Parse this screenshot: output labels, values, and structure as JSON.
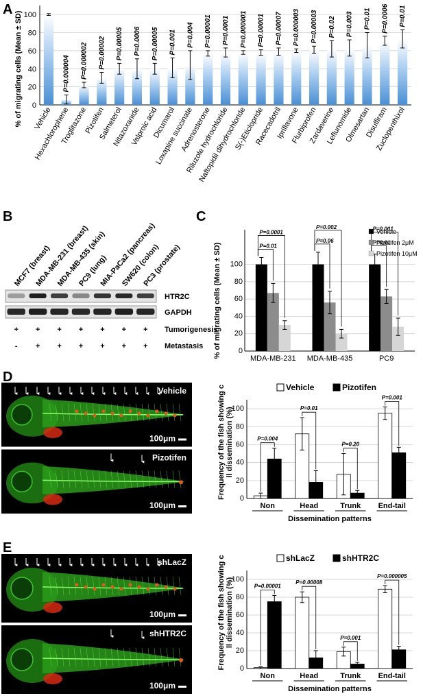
{
  "panels": {
    "A": "A",
    "B": "B",
    "C": "C",
    "D": "D",
    "E": "E"
  },
  "chart_data": [
    {
      "id": "A",
      "type": "bar",
      "ylabel": "% of migrating cells (Mean ± SD)",
      "ylim": [
        0,
        110
      ],
      "yticks": [
        0,
        20,
        40,
        60,
        80,
        100
      ],
      "grid": true,
      "categories": [
        "Vehicle",
        "Hexachlorophene",
        "Troglitazone",
        "Pizotifen",
        "Salmeterol",
        "Nitazoxanide",
        "Valproic acid",
        "Dicumarol",
        "Loxapine succinate",
        "Adrenosterone",
        "Riluzole hydrochloride",
        "Naftopidil dihydrochloride",
        "S(-)Eticlopride",
        "Racecadotril",
        "Ipriflavone",
        "Flurbiprofen",
        "Zardaverine",
        "Leflunomide",
        "Olmesartan",
        "Disulfiram",
        "Zuclopenthixol"
      ],
      "values": [
        100,
        6,
        22,
        30,
        40,
        40,
        40,
        41,
        44,
        57,
        58,
        58,
        58,
        59,
        60,
        61,
        62,
        63,
        66,
        71,
        73
      ],
      "errors": [
        1,
        5,
        3,
        6,
        6,
        11,
        6,
        11,
        16,
        3,
        5,
        2,
        3,
        4,
        2,
        4,
        9,
        9,
        14,
        5,
        10
      ],
      "pvalues": [
        "",
        "P=0.000004",
        "P=0.000002",
        "P=0.00002",
        "P=0.00005",
        "P=0.0006",
        "P=0.00005",
        "P=0.001",
        "P=0.004",
        "P=0.00001",
        "P=0.0001",
        "P=0.000001",
        "P=0.00001",
        "P=0.00007",
        "P=0.000003",
        "P=0.00003",
        "P=0.02",
        "P=0.003",
        "P=0.01",
        "P=0.0006",
        "P=0.01"
      ]
    },
    {
      "id": "C",
      "type": "bar",
      "ylabel": "% of migrating cells (Mean ± SD)",
      "ylim": [
        0,
        140
      ],
      "yticks": [
        0,
        20,
        40,
        60,
        80,
        100
      ],
      "grid": true,
      "legend_position": "top-right",
      "categories": [
        "MDA-MB-231",
        "MDA-MB-435",
        "PC9"
      ],
      "series": [
        {
          "name": "Vehicle",
          "color": "#000000",
          "values": [
            100,
            100,
            100
          ],
          "errors": [
            8,
            14,
            12
          ]
        },
        {
          "name": "Pizotifen  2μM",
          "color": "#8c8c8c",
          "values": [
            67,
            56,
            63
          ],
          "errors": [
            11,
            13,
            8
          ]
        },
        {
          "name": "Pizotifen 10μM",
          "color": "#d6d6d6",
          "values": [
            30,
            20,
            28
          ],
          "errors": [
            5,
            5,
            10
          ]
        }
      ],
      "comparisons": [
        {
          "group": 0,
          "to": 1,
          "label": "P=0.01"
        },
        {
          "group": 0,
          "to": 2,
          "label": "P=0.0001"
        },
        {
          "group": 1,
          "to": 1,
          "label": "P=0.06"
        },
        {
          "group": 1,
          "to": 2,
          "label": "P=0.002"
        },
        {
          "group": 2,
          "to": 1,
          "label": "P=0.01"
        },
        {
          "group": 2,
          "to": 2,
          "label": "P=0.001"
        }
      ]
    },
    {
      "id": "D",
      "type": "bar",
      "ylabel": "Frequency of the fish showing cell dissemination (%)",
      "xlabel": "Dissemination patterns",
      "ylim": [
        0,
        110
      ],
      "yticks": [
        0,
        20,
        40,
        60,
        80,
        100
      ],
      "grid": true,
      "legend_position": "top",
      "categories": [
        "Non",
        "Head",
        "Trunk",
        "End-tail"
      ],
      "series": [
        {
          "name": "Vehicle",
          "color": "#ffffff",
          "values": [
            3,
            72,
            27,
            95
          ],
          "errors": [
            3,
            18,
            23,
            7
          ]
        },
        {
          "name": "Pizotifen",
          "color": "#000000",
          "values": [
            44,
            18,
            6,
            51
          ],
          "errors": [
            12,
            13,
            3,
            6
          ]
        }
      ],
      "pvalues": [
        "P=0.004",
        "P=0.01",
        "P=0.20",
        "P=0.001"
      ]
    },
    {
      "id": "E",
      "type": "bar",
      "ylabel": "Frequency of the fish showing cell dissemination (%)",
      "xlabel": "Dissemination patterns",
      "ylim": [
        0,
        110
      ],
      "yticks": [
        0,
        20,
        40,
        60,
        80,
        100
      ],
      "grid": true,
      "legend_position": "top",
      "categories": [
        "Non",
        "Head",
        "Trunk",
        "End-tail"
      ],
      "series": [
        {
          "name": "shLacZ",
          "color": "#ffffff",
          "values": [
            1,
            80,
            19,
            89
          ],
          "errors": [
            1,
            6,
            5,
            4
          ]
        },
        {
          "name": "shHTR2C",
          "color": "#000000",
          "values": [
            75,
            12,
            5,
            21
          ],
          "errors": [
            7,
            8,
            2,
            4
          ]
        }
      ],
      "pvalues": [
        "P=0.00001",
        "P=0.00008",
        "P=0.001",
        "P=0.000005"
      ]
    }
  ],
  "blot": {
    "cell_lines": [
      "MCF7 (breast)",
      "MDA-MB-231 (breast)",
      "MDA-MB-435 (skin)",
      "PC9 (lung)",
      "MIA-PaCa2 (pancreas)",
      "SW620 (colon)",
      "PC3 (prostate)"
    ],
    "bands": [
      "HTR2C",
      "GAPDH"
    ],
    "htr2c_levels": [
      0.35,
      0.95,
      0.8,
      0.45,
      0.85,
      0.9,
      0.8
    ],
    "gapdh_levels": [
      0.9,
      0.95,
      0.92,
      0.9,
      0.92,
      0.95,
      0.92
    ],
    "rows": [
      {
        "label": "Tumorigenesis",
        "marks": [
          "+",
          "+",
          "+",
          "+",
          "+",
          "+",
          "+"
        ]
      },
      {
        "label": "Metastasis",
        "marks": [
          "-",
          "+",
          "+",
          "+",
          "+",
          "+",
          "+"
        ]
      }
    ]
  },
  "fish": {
    "D": [
      {
        "label": "Vehicle",
        "scale": "100μm",
        "dense": true
      },
      {
        "label": "Pizotifen",
        "scale": "100μm",
        "dense": false
      }
    ],
    "E": [
      {
        "label": "shLacZ",
        "scale": "100μm",
        "dense": true
      },
      {
        "label": "shHTR2C",
        "scale": "100μm",
        "dense": false
      }
    ]
  }
}
